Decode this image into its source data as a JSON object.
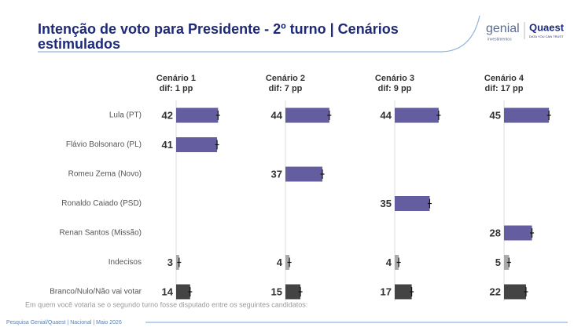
{
  "header": {
    "title_lines": [
      "Intenção de voto para Presidente - 2º turno | Cenários",
      "estimulados"
    ],
    "logo_genial": "genial",
    "logo_genial_sub": "investimentos",
    "logo_quaest": "Quaest",
    "logo_quaest_sub": "DATA YOU CAN TRUST"
  },
  "rows": [
    {
      "label": "Lula (PT)",
      "color": "#645da0"
    },
    {
      "label": "Flávio Bolsonaro (PL)",
      "color": "#645da0"
    },
    {
      "label": "Romeu Zema (Novo)",
      "color": "#645da0"
    },
    {
      "label": "Ronaldo Caiado (PSD)",
      "color": "#645da0"
    },
    {
      "label": "Renan Santos (Missão)",
      "color": "#645da0"
    },
    {
      "label": "Indecisos",
      "color": "#a9a9a9"
    },
    {
      "label": "Branco/Nulo/Não vai votar",
      "color": "#444444"
    }
  ],
  "chart_data": [
    {
      "type": "bar",
      "title": "Cenário 1",
      "subtitle": "dif: 1 pp",
      "values": [
        42,
        41,
        null,
        null,
        null,
        3,
        14
      ],
      "error": 2
    },
    {
      "type": "bar",
      "title": "Cenário 2",
      "subtitle": "dif: 7 pp",
      "values": [
        44,
        null,
        37,
        null,
        null,
        4,
        15
      ],
      "error": 2
    },
    {
      "type": "bar",
      "title": "Cenário 3",
      "subtitle": "dif: 9 pp",
      "values": [
        44,
        null,
        null,
        35,
        null,
        4,
        17
      ],
      "error": 2
    },
    {
      "type": "bar",
      "title": "Cenário 4",
      "subtitle": "dif: 17 pp",
      "values": [
        45,
        null,
        null,
        null,
        28,
        5,
        22
      ],
      "error": 2
    }
  ],
  "note": "Em quem você votaria se o segundo turno fosse disputado entre os seguintes candidatos:",
  "footer": "Pesquisa Genial/Quaest | Nacional | Maio 2026"
}
